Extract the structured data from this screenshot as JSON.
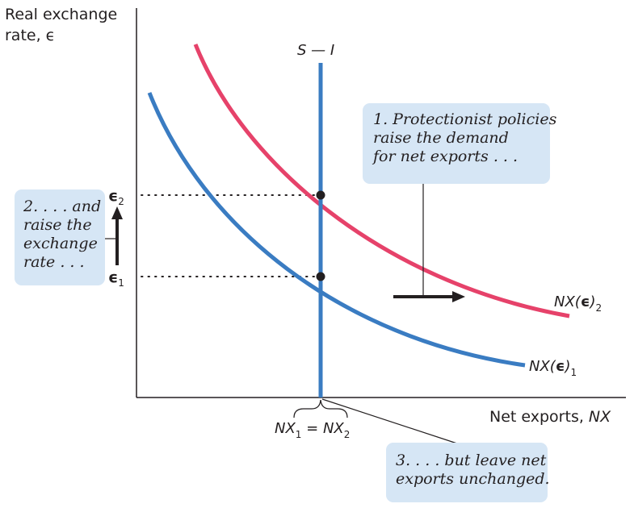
{
  "axes": {
    "y_title_line1": "Real exchange",
    "y_title_line2": "rate, ϵ",
    "x_title": "Net exports, ",
    "x_title_italic": "NX"
  },
  "curves": {
    "si_label": "S — I",
    "nx1_base": "NX(",
    "nx1_eps": "ϵ",
    "nx1_close": ")",
    "nx1_sub": "1",
    "nx2_base": "NX(",
    "nx2_eps": "ϵ",
    "nx2_close": ")",
    "nx2_sub": "2"
  },
  "levels": {
    "eps2": "ϵ",
    "eps2_sub": "2",
    "eps1": "ϵ",
    "eps1_sub": "1"
  },
  "x_marker": {
    "nx": "NX",
    "sub1": "1",
    "eq": " = NX",
    "sub2": "2"
  },
  "callouts": {
    "c1": [
      "1. Protectionist policies",
      "raise the demand",
      "for net exports . . ."
    ],
    "c2": [
      "2. . . . and",
      "raise the",
      "exchange",
      "rate . . ."
    ],
    "c3": [
      "3. . . . but leave net",
      "exports unchanged."
    ]
  },
  "colors": {
    "blue": "#3a7cc2",
    "red": "#e6426a",
    "callout_bg": "#d6e6f5",
    "ink": "#231f20"
  }
}
